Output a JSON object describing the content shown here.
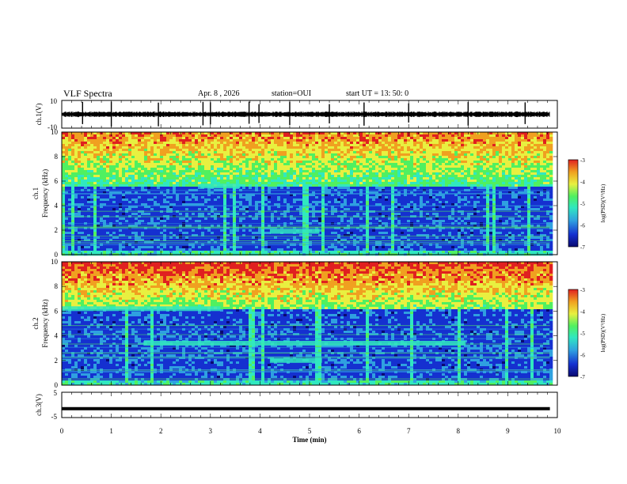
{
  "header": {
    "title": "VLF Spectra",
    "date": "Apr. 8 , 2026",
    "station": "station=OUI",
    "start_ut": "start UT = 13: 50: 0"
  },
  "colors": {
    "colormap": [
      "#0a0a70",
      "#1530d0",
      "#2fa0e0",
      "#30e8c0",
      "#50f060",
      "#e8f040",
      "#f0a020",
      "#e02020"
    ]
  },
  "chart_data": [
    {
      "type": "line",
      "name": "ch1-waveform",
      "ylabel": "ch.1(V)",
      "ylim": [
        -10,
        10
      ],
      "y_ticks": [
        "10",
        "-10"
      ],
      "baseline": 0,
      "spikes_min": [
        0.42,
        1.0,
        1.95,
        2.85,
        3.0,
        3.78,
        3.98,
        4.6,
        5.4,
        6.1,
        7.0,
        8.2,
        9.35
      ]
    },
    {
      "type": "heatmap",
      "name": "ch1-spectrogram",
      "ylabel": "ch.1 Frequency (kHz)",
      "ylim": [
        0,
        10
      ],
      "y_ticks": [
        "0",
        "2",
        "4",
        "6",
        "8",
        "10"
      ],
      "noise_band_khz": [
        5.7,
        10
      ],
      "quiet_band_khz": [
        0.5,
        5.5
      ],
      "emissions": [
        {
          "t_start": 4.2,
          "t_end": 5.2,
          "freq_khz": 1.9
        },
        {
          "t_start": 2.8,
          "t_end": 3.6,
          "freq_khz": 5.6
        }
      ],
      "colorbar": {
        "label": "log(PSD)(V²/Hz)",
        "ticks": [
          "-3",
          "-4",
          "-5",
          "-6",
          "-7"
        ],
        "range": [
          -7,
          -3
        ]
      }
    },
    {
      "type": "heatmap",
      "name": "ch2-spectrogram",
      "ylabel": "ch.2 Frequency (kHz)",
      "ylim": [
        0,
        10
      ],
      "y_ticks": [
        "0",
        "2",
        "4",
        "6",
        "8",
        "10"
      ],
      "noise_band_khz": [
        6.2,
        10
      ],
      "quiet_band_khz": [
        0.5,
        6.0
      ],
      "emissions": [
        {
          "t_start": 1.65,
          "t_end": 8.15,
          "freq_khz": 3.4
        },
        {
          "t_start": 4.2,
          "t_end": 5.25,
          "freq_khz": 2.0
        },
        {
          "t_start": 0.0,
          "t_end": 3.2,
          "freq_khz": 6.2
        }
      ],
      "colorbar": {
        "label": "log(PSD)(V²/Hz)",
        "ticks": [
          "-3",
          "-4",
          "-5",
          "-6",
          "-7"
        ],
        "range": [
          -7,
          -3
        ]
      }
    },
    {
      "type": "line",
      "name": "ch3-waveform",
      "ylabel": "ch.3(V)",
      "ylim": [
        -5,
        5
      ],
      "y_ticks": [
        "5",
        "-5"
      ],
      "level": -1.5
    }
  ],
  "x_axis": {
    "label": "Time (min)",
    "range": [
      0,
      10
    ],
    "data_end": 9.85,
    "ticks": [
      "0",
      "1",
      "2",
      "3",
      "4",
      "5",
      "6",
      "7",
      "8",
      "9",
      "10"
    ]
  }
}
